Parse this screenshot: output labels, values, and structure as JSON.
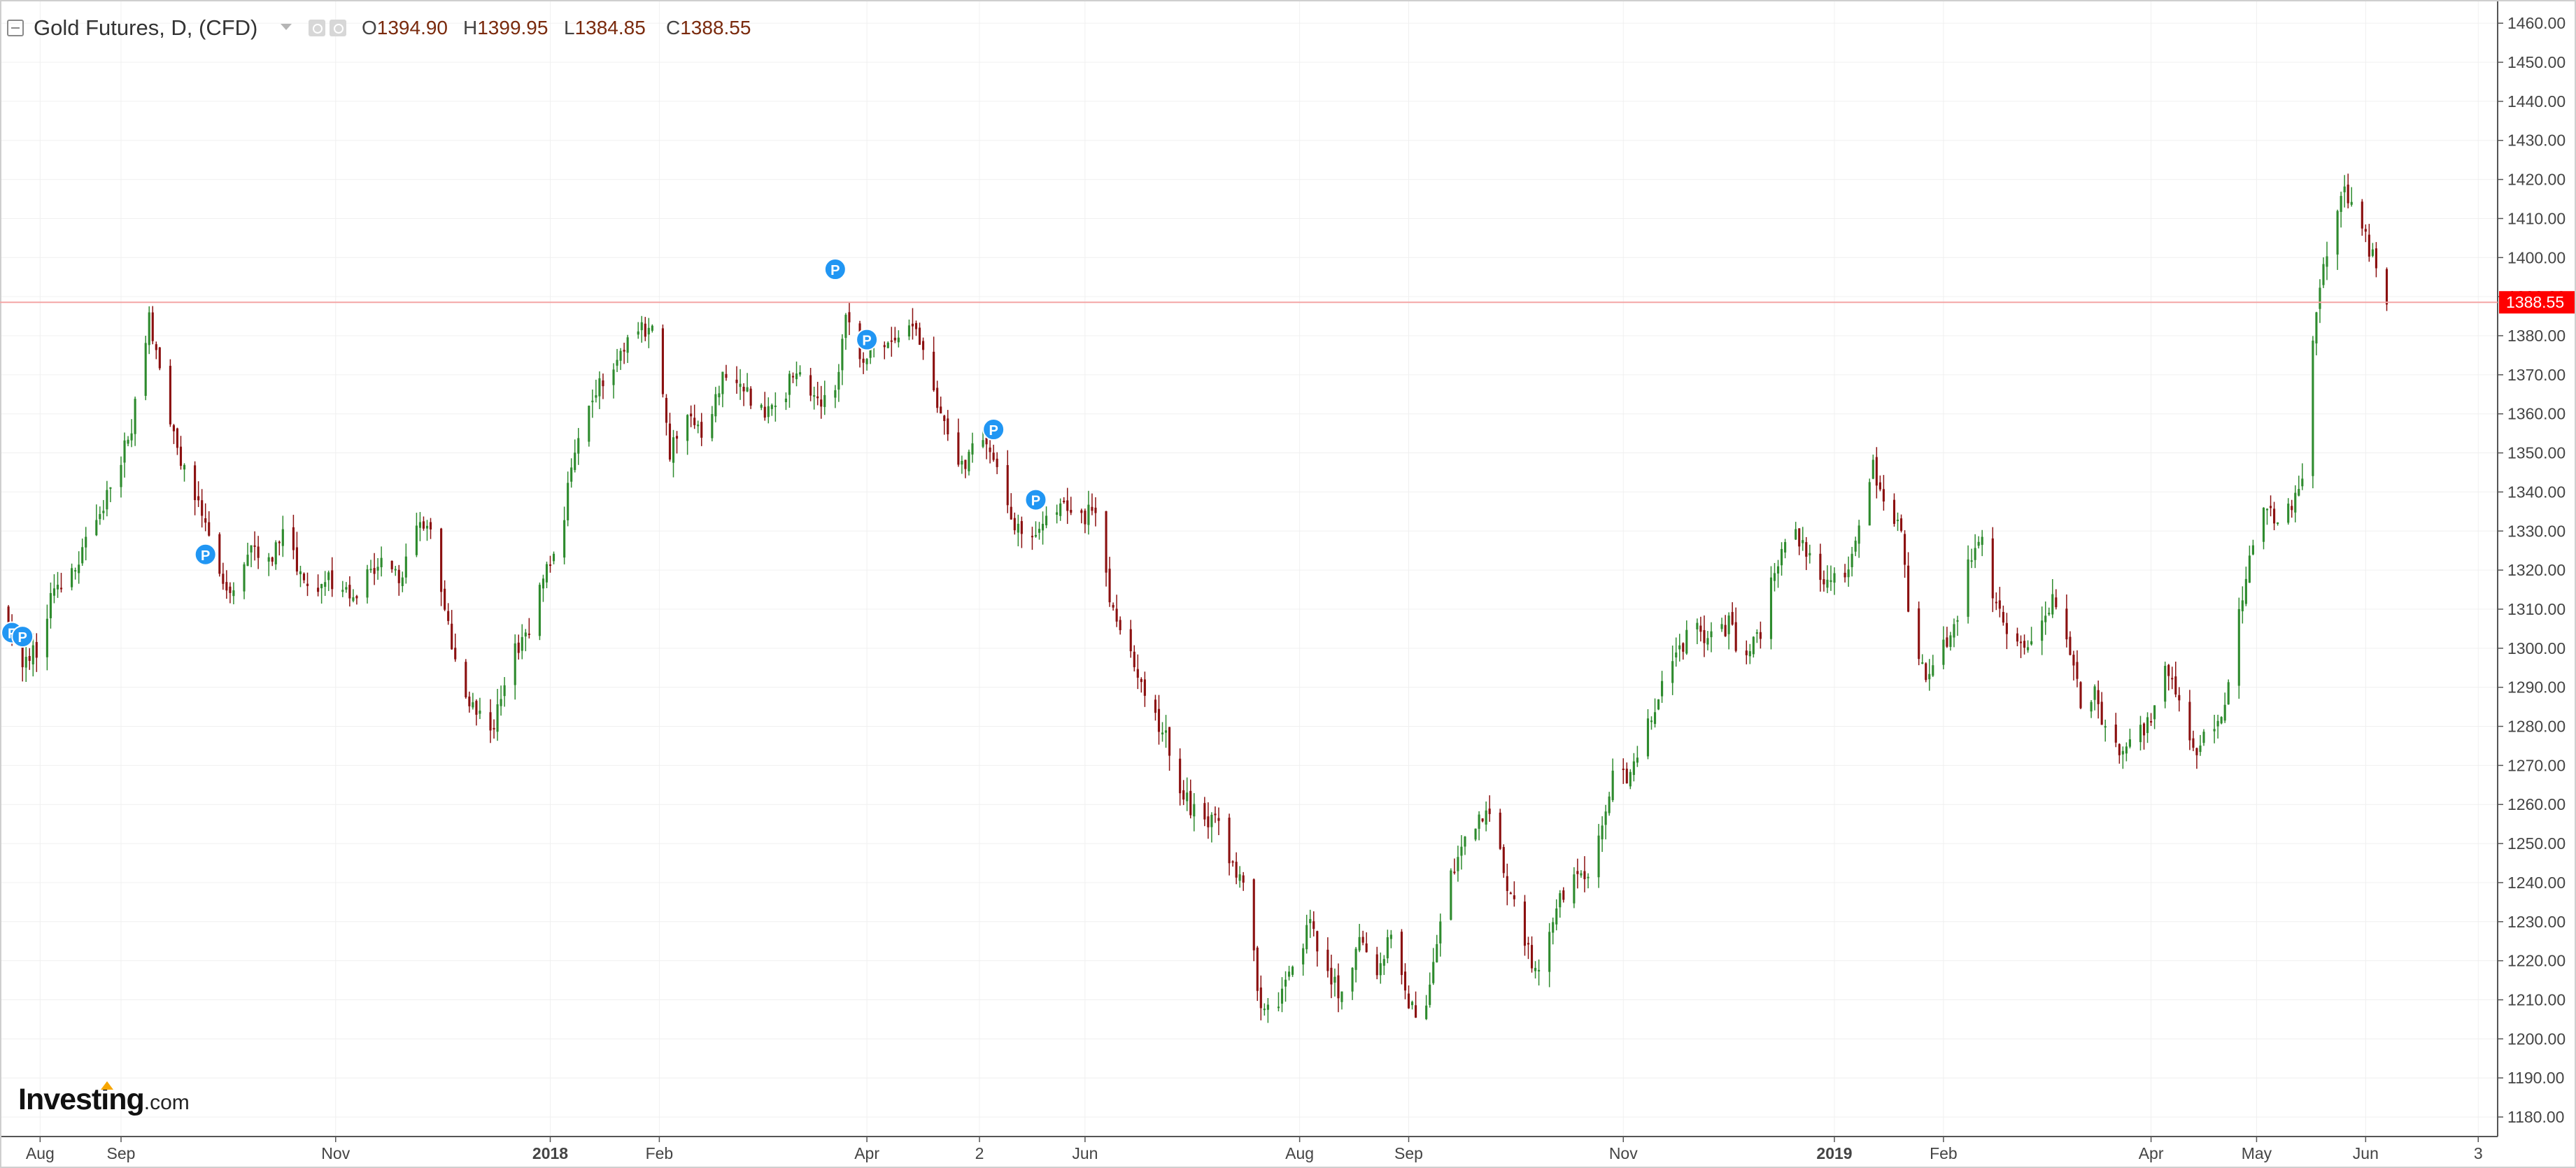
{
  "header": {
    "title": "Gold Futures, D, (CFD)",
    "open_label": "O",
    "open_value": "1394.90",
    "high_label": "H",
    "high_value": "1399.95",
    "low_label": "L",
    "low_value": "1384.85",
    "close_label": "C",
    "close_value": "1388.55"
  },
  "logo": {
    "main": "Investing",
    "suffix": ".com"
  },
  "colors": {
    "up": "#2e8b2e",
    "down": "#8b1010",
    "price_line": "#f4a6a6",
    "price_tag_bg": "#ff0000",
    "marker": "#2196f3",
    "axis_text": "#444444",
    "grid": "#f0f0f0"
  },
  "chart_data": {
    "type": "candlestick",
    "title": "Gold Futures, D, (CFD)",
    "ylim": [
      1175,
      1462
    ],
    "y_ticks": [
      1180,
      1190,
      1200,
      1210,
      1220,
      1230,
      1240,
      1250,
      1260,
      1270,
      1280,
      1290,
      1300,
      1310,
      1320,
      1330,
      1340,
      1350,
      1360,
      1370,
      1380,
      1390,
      1400,
      1410,
      1420,
      1430,
      1440,
      1450,
      1460
    ],
    "current_price": 1388.55,
    "current_price_label": "1388.55",
    "x_ticks": [
      {
        "day": -23,
        "label": "Aug",
        "bold": false
      },
      {
        "day": 0,
        "label": "Sep",
        "bold": false
      },
      {
        "day": 61,
        "label": "Nov",
        "bold": false
      },
      {
        "day": 122,
        "label": "2018",
        "bold": true
      },
      {
        "day": 153,
        "label": "Feb",
        "bold": false
      },
      {
        "day": 212,
        "label": "Apr",
        "bold": false
      },
      {
        "day": 244,
        "label": "2",
        "bold": false
      },
      {
        "day": 274,
        "label": "Jun",
        "bold": false
      },
      {
        "day": 335,
        "label": "Aug",
        "bold": false
      },
      {
        "day": 366,
        "label": "Sep",
        "bold": false
      },
      {
        "day": 427,
        "label": "Nov",
        "bold": false
      },
      {
        "day": 487,
        "label": "2019",
        "bold": true
      },
      {
        "day": 518,
        "label": "Feb",
        "bold": false
      },
      {
        "day": 577,
        "label": "Apr",
        "bold": false
      },
      {
        "day": 607,
        "label": "May",
        "bold": false
      },
      {
        "day": 638,
        "label": "Jun",
        "bold": false
      },
      {
        "day": 670,
        "label": "3",
        "bold": false
      }
    ],
    "x_domain_days": [
      -35,
      705
    ],
    "anchors": [
      [
        -33,
        1310
      ],
      [
        -28,
        1295
      ],
      [
        -24,
        1300
      ],
      [
        -19,
        1316
      ],
      [
        -14,
        1320
      ],
      [
        -9,
        1328
      ],
      [
        -5,
        1336
      ],
      [
        -2,
        1343
      ],
      [
        3,
        1356
      ],
      [
        8,
        1385
      ],
      [
        13,
        1362
      ],
      [
        17,
        1348
      ],
      [
        22,
        1336
      ],
      [
        27,
        1321
      ],
      [
        32,
        1313
      ],
      [
        37,
        1325
      ],
      [
        42,
        1322
      ],
      [
        47,
        1333
      ],
      [
        51,
        1318
      ],
      [
        56,
        1316
      ],
      [
        61,
        1318
      ],
      [
        65,
        1312
      ],
      [
        70,
        1319
      ],
      [
        74,
        1322
      ],
      [
        79,
        1318
      ],
      [
        84,
        1330
      ],
      [
        87,
        1333
      ],
      [
        90,
        1319
      ],
      [
        96,
        1290
      ],
      [
        101,
        1284
      ],
      [
        106,
        1280
      ],
      [
        111,
        1298
      ],
      [
        116,
        1306
      ],
      [
        121,
        1320
      ],
      [
        126,
        1335
      ],
      [
        130,
        1355
      ],
      [
        135,
        1366
      ],
      [
        140,
        1372
      ],
      [
        146,
        1384
      ],
      [
        152,
        1380
      ],
      [
        156,
        1350
      ],
      [
        161,
        1360
      ],
      [
        166,
        1352
      ],
      [
        171,
        1370
      ],
      [
        176,
        1369
      ],
      [
        181,
        1360
      ],
      [
        187,
        1363
      ],
      [
        192,
        1371
      ],
      [
        197,
        1365
      ],
      [
        202,
        1362
      ],
      [
        206,
        1384
      ],
      [
        211,
        1374
      ],
      [
        216,
        1378
      ],
      [
        221,
        1382
      ],
      [
        226,
        1382
      ],
      [
        230,
        1369
      ],
      [
        234,
        1358
      ],
      [
        239,
        1346
      ],
      [
        243,
        1352
      ],
      [
        247,
        1352
      ],
      [
        251,
        1340
      ],
      [
        256,
        1327
      ],
      [
        260,
        1327
      ],
      [
        264,
        1336
      ],
      [
        268,
        1336
      ],
      [
        273,
        1333
      ],
      [
        277,
        1336
      ],
      [
        281,
        1312
      ],
      [
        287,
        1300
      ],
      [
        292,
        1283
      ],
      [
        297,
        1278
      ],
      [
        302,
        1262
      ],
      [
        307,
        1256
      ],
      [
        312,
        1255
      ],
      [
        316,
        1244
      ],
      [
        320,
        1236
      ],
      [
        324,
        1206
      ],
      [
        329,
        1210
      ],
      [
        334,
        1219
      ],
      [
        338,
        1232
      ],
      [
        342,
        1216
      ],
      [
        347,
        1212
      ],
      [
        352,
        1224
      ],
      [
        357,
        1216
      ],
      [
        361,
        1228
      ],
      [
        366,
        1208
      ],
      [
        370,
        1205
      ],
      [
        375,
        1230
      ],
      [
        380,
        1249
      ],
      [
        384,
        1253
      ],
      [
        389,
        1260
      ],
      [
        394,
        1239
      ],
      [
        398,
        1228
      ],
      [
        402,
        1217
      ],
      [
        407,
        1230
      ],
      [
        412,
        1243
      ],
      [
        416,
        1241
      ],
      [
        420,
        1252
      ],
      [
        424,
        1267
      ],
      [
        429,
        1268
      ],
      [
        434,
        1280
      ],
      [
        438,
        1292
      ],
      [
        443,
        1300
      ],
      [
        447,
        1306
      ],
      [
        452,
        1302
      ],
      [
        457,
        1306
      ],
      [
        461,
        1297
      ],
      [
        466,
        1303
      ],
      [
        470,
        1320
      ],
      [
        475,
        1330
      ],
      [
        479,
        1325
      ],
      [
        484,
        1318
      ],
      [
        490,
        1317
      ],
      [
        494,
        1331
      ],
      [
        498,
        1346
      ],
      [
        502,
        1337
      ],
      [
        506,
        1331
      ],
      [
        509,
        1300
      ],
      [
        513,
        1292
      ],
      [
        517,
        1300
      ],
      [
        521,
        1305
      ],
      [
        525,
        1321
      ],
      [
        529,
        1327
      ],
      [
        533,
        1311
      ],
      [
        537,
        1299
      ],
      [
        541,
        1302
      ],
      [
        545,
        1303
      ],
      [
        549,
        1314
      ],
      [
        553,
        1303
      ],
      [
        557,
        1287
      ],
      [
        561,
        1288
      ],
      [
        565,
        1277
      ],
      [
        569,
        1274
      ],
      [
        573,
        1279
      ],
      [
        577,
        1281
      ],
      [
        581,
        1296
      ],
      [
        585,
        1286
      ],
      [
        589,
        1274
      ],
      [
        593,
        1277
      ],
      [
        597,
        1282
      ],
      [
        601,
        1302
      ],
      [
        605,
        1325
      ],
      [
        609,
        1334
      ],
      [
        614,
        1334
      ],
      [
        617,
        1336
      ],
      [
        620,
        1345
      ],
      [
        624,
        1387
      ],
      [
        628,
        1405
      ],
      [
        632,
        1417
      ],
      [
        636,
        1409
      ],
      [
        640,
        1400
      ],
      [
        644,
        1388
      ]
    ],
    "markers": [
      {
        "day": -31,
        "price": 1304,
        "label": "F"
      },
      {
        "day": -28,
        "price": 1303,
        "label": "P"
      },
      {
        "day": 24,
        "price": 1324,
        "label": "P"
      },
      {
        "day": 203,
        "price": 1397,
        "label": "P"
      },
      {
        "day": 212,
        "price": 1379,
        "label": "P"
      },
      {
        "day": 248,
        "price": 1356,
        "label": "P"
      },
      {
        "day": 260,
        "price": 1338,
        "label": "P"
      }
    ]
  }
}
